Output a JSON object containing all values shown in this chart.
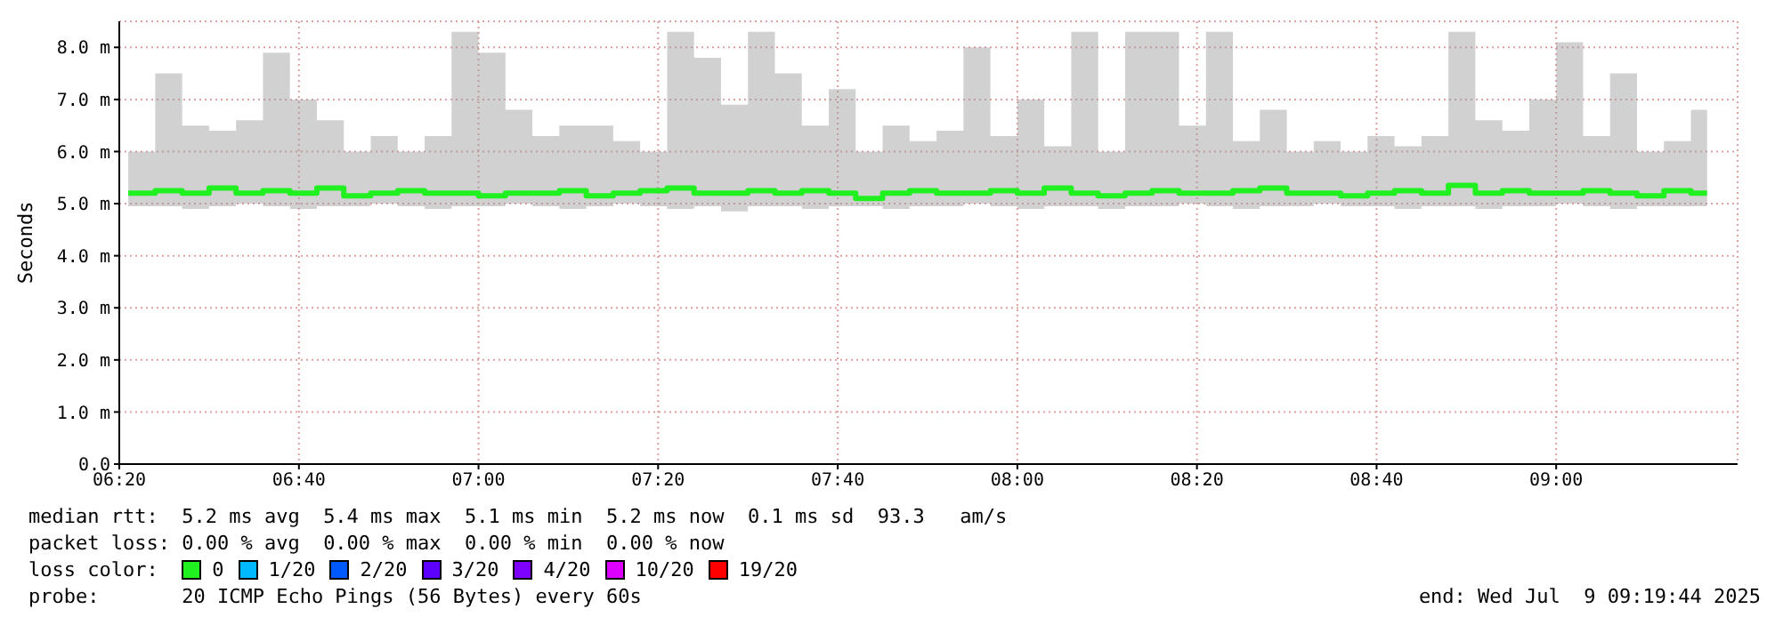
{
  "chart_data": {
    "type": "step",
    "ylabel": "Seconds",
    "x": [
      6.35,
      6.4,
      6.45,
      6.5,
      6.55,
      6.6,
      6.65,
      6.7,
      6.75,
      6.8,
      6.85,
      6.9,
      6.95,
      7.0,
      7.05,
      7.1,
      7.15,
      7.2,
      7.25,
      7.3,
      7.35,
      7.4,
      7.45,
      7.5,
      7.55,
      7.6,
      7.65,
      7.7,
      7.75,
      7.8,
      7.85,
      7.9,
      7.95,
      8.0,
      8.05,
      8.1,
      8.15,
      8.2,
      8.25,
      8.3,
      8.35,
      8.4,
      8.45,
      8.5,
      8.55,
      8.6,
      8.65,
      8.7,
      8.75,
      8.8,
      8.85,
      8.9,
      8.95,
      9.0,
      9.05,
      9.1,
      9.15,
      9.2,
      9.25,
      9.28
    ],
    "series": [
      {
        "name": "0",
        "color": "#20f020",
        "values": [
          5.2,
          5.25,
          5.2,
          5.3,
          5.2,
          5.25,
          5.2,
          5.3,
          5.15,
          5.2,
          5.25,
          5.2,
          5.2,
          5.15,
          5.2,
          5.2,
          5.25,
          5.15,
          5.2,
          5.25,
          5.3,
          5.2,
          5.2,
          5.25,
          5.2,
          5.25,
          5.2,
          5.1,
          5.2,
          5.25,
          5.2,
          5.2,
          5.25,
          5.2,
          5.3,
          5.2,
          5.15,
          5.2,
          5.25,
          5.2,
          5.2,
          5.25,
          5.3,
          5.2,
          5.2,
          5.15,
          5.2,
          5.25,
          5.2,
          5.35,
          5.2,
          5.25,
          5.2,
          5.2,
          5.25,
          5.2,
          5.15,
          5.25,
          5.2,
          5.2
        ],
        "lower": [
          4.95,
          4.95,
          4.9,
          4.95,
          5.0,
          4.95,
          4.9,
          4.95,
          4.95,
          5.0,
          4.95,
          4.9,
          4.95,
          4.95,
          5.0,
          4.95,
          4.9,
          4.95,
          5.0,
          4.95,
          4.9,
          4.95,
          4.85,
          4.95,
          4.95,
          4.9,
          4.95,
          4.95,
          4.9,
          4.95,
          4.95,
          5.0,
          4.95,
          4.9,
          4.95,
          4.95,
          4.9,
          4.95,
          4.95,
          5.0,
          4.95,
          4.9,
          4.95,
          4.95,
          5.0,
          4.95,
          4.95,
          4.9,
          4.95,
          4.95,
          4.9,
          4.95,
          4.95,
          5.0,
          4.95,
          4.9,
          4.95,
          4.95,
          4.95,
          5.0
        ],
        "upper": [
          6.0,
          7.5,
          6.5,
          6.4,
          6.6,
          7.9,
          7.0,
          6.6,
          6.0,
          6.3,
          6.0,
          6.3,
          8.3,
          7.9,
          6.8,
          6.3,
          6.5,
          6.5,
          6.2,
          6.0,
          8.3,
          7.8,
          6.9,
          8.3,
          7.5,
          6.5,
          7.2,
          6.0,
          6.5,
          6.2,
          6.4,
          8.0,
          6.3,
          7.0,
          6.1,
          8.3,
          6.0,
          8.3,
          8.3,
          6.5,
          8.3,
          6.2,
          6.8,
          6.0,
          6.2,
          6.0,
          6.3,
          6.1,
          6.3,
          8.3,
          6.6,
          6.4,
          7.0,
          8.1,
          6.3,
          7.5,
          6.0,
          6.2,
          6.8,
          5.6
        ]
      },
      {
        "name": "1/20",
        "color": "#00b8ff",
        "values": [
          null,
          null,
          null,
          null,
          null,
          null,
          null,
          null,
          null,
          null,
          null,
          null,
          null,
          null,
          null,
          null,
          null,
          null,
          null,
          null,
          null,
          null,
          null,
          null,
          null,
          null,
          null,
          null,
          null,
          null,
          null,
          null,
          null,
          null,
          null,
          null,
          null,
          null,
          null,
          null,
          null,
          null,
          null,
          null,
          null,
          null,
          null,
          null,
          null,
          null,
          null,
          null,
          null,
          null,
          null,
          null,
          null,
          null,
          null,
          null
        ]
      },
      {
        "name": "2/20",
        "color": "#0059ff",
        "values": [
          null,
          null,
          null,
          null,
          null,
          null,
          null,
          null,
          null,
          null,
          null,
          null,
          null,
          null,
          null,
          null,
          null,
          null,
          null,
          null,
          null,
          null,
          null,
          null,
          null,
          null,
          null,
          null,
          null,
          null,
          null,
          null,
          null,
          null,
          null,
          null,
          null,
          null,
          null,
          null,
          null,
          null,
          null,
          null,
          null,
          null,
          null,
          null,
          null,
          null,
          null,
          null,
          null,
          null,
          null,
          null,
          null,
          null,
          null,
          null
        ]
      },
      {
        "name": "3/20",
        "color": "#5e00ff",
        "values": [
          null,
          null,
          null,
          null,
          null,
          null,
          null,
          null,
          null,
          null,
          null,
          null,
          null,
          null,
          null,
          null,
          null,
          null,
          null,
          null,
          null,
          null,
          null,
          null,
          null,
          null,
          null,
          null,
          null,
          null,
          null,
          null,
          null,
          null,
          null,
          null,
          null,
          null,
          null,
          null,
          null,
          null,
          null,
          null,
          null,
          null,
          null,
          null,
          null,
          null,
          null,
          null,
          null,
          null,
          null,
          null,
          null,
          null,
          null,
          null
        ]
      },
      {
        "name": "4/20",
        "color": "#7e00ff",
        "values": [
          null,
          null,
          null,
          null,
          null,
          null,
          null,
          null,
          null,
          null,
          null,
          null,
          null,
          null,
          null,
          null,
          null,
          null,
          null,
          null,
          null,
          null,
          null,
          null,
          null,
          null,
          null,
          null,
          null,
          null,
          null,
          null,
          null,
          null,
          null,
          null,
          null,
          null,
          null,
          null,
          null,
          null,
          null,
          null,
          null,
          null,
          null,
          null,
          null,
          null,
          null,
          null,
          null,
          null,
          null,
          null,
          null,
          null,
          null,
          null
        ]
      },
      {
        "name": "10/20",
        "color": "#dd00ff",
        "values": [
          null,
          null,
          null,
          null,
          null,
          null,
          null,
          null,
          null,
          null,
          null,
          null,
          null,
          null,
          null,
          null,
          null,
          null,
          null,
          null,
          null,
          null,
          null,
          null,
          null,
          null,
          null,
          null,
          null,
          null,
          null,
          null,
          null,
          null,
          null,
          null,
          null,
          null,
          null,
          null,
          null,
          null,
          null,
          null,
          null,
          null,
          null,
          null,
          null,
          null,
          null,
          null,
          null,
          null,
          null,
          null,
          null,
          null,
          null,
          null
        ]
      },
      {
        "name": "19/20",
        "color": "#ff0000",
        "values": [
          null,
          null,
          null,
          null,
          null,
          null,
          null,
          null,
          null,
          null,
          null,
          null,
          null,
          null,
          null,
          null,
          null,
          null,
          null,
          null,
          null,
          null,
          null,
          null,
          null,
          null,
          null,
          null,
          null,
          null,
          null,
          null,
          null,
          null,
          null,
          null,
          null,
          null,
          null,
          null,
          null,
          null,
          null,
          null,
          null,
          null,
          null,
          null,
          null,
          null,
          null,
          null,
          null,
          null,
          null,
          null,
          null,
          null,
          null,
          null
        ]
      }
    ],
    "legend_title": "loss color:",
    "legend": "bottom",
    "xlim": [
      6.3333,
      9.3367
    ],
    "xticks": [
      {
        "value": 6.3333,
        "label": "06:20"
      },
      {
        "value": 6.6667,
        "label": "06:40"
      },
      {
        "value": 7,
        "label": "07:00"
      },
      {
        "value": 7.3333,
        "label": "07:20"
      },
      {
        "value": 7.6667,
        "label": "07:40"
      },
      {
        "value": 8,
        "label": "08:00"
      },
      {
        "value": 8.3333,
        "label": "08:20"
      },
      {
        "value": 8.6667,
        "label": "08:40"
      },
      {
        "value": 9,
        "label": "09:00"
      }
    ],
    "ylim": [
      0,
      8.5
    ],
    "yticks": [
      {
        "value": 0,
        "label": "0.0"
      },
      {
        "value": 1,
        "label": "1.0 m"
      },
      {
        "value": 2,
        "label": "2.0 m"
      },
      {
        "value": 3,
        "label": "3.0 m"
      },
      {
        "value": 4,
        "label": "4.0 m"
      },
      {
        "value": 5,
        "label": "5.0 m"
      },
      {
        "value": 6,
        "label": "6.0 m"
      },
      {
        "value": 7,
        "label": "7.0 m"
      },
      {
        "value": 8,
        "label": "8.0 m"
      }
    ],
    "grid": true,
    "annotations": [
      "median rtt:  5.2 ms avg  5.4 ms max  5.1 ms min  5.2 ms now  0.1 ms sd  93.3   am/s",
      "packet loss: 0.00 % avg  0.00 % max  0.00 % min  0.00 % now",
      "probe:       20 ICMP Echo Pings (56 Bytes) every 60s",
      "end: Wed Jul  9 09:19:44 2025"
    ]
  }
}
